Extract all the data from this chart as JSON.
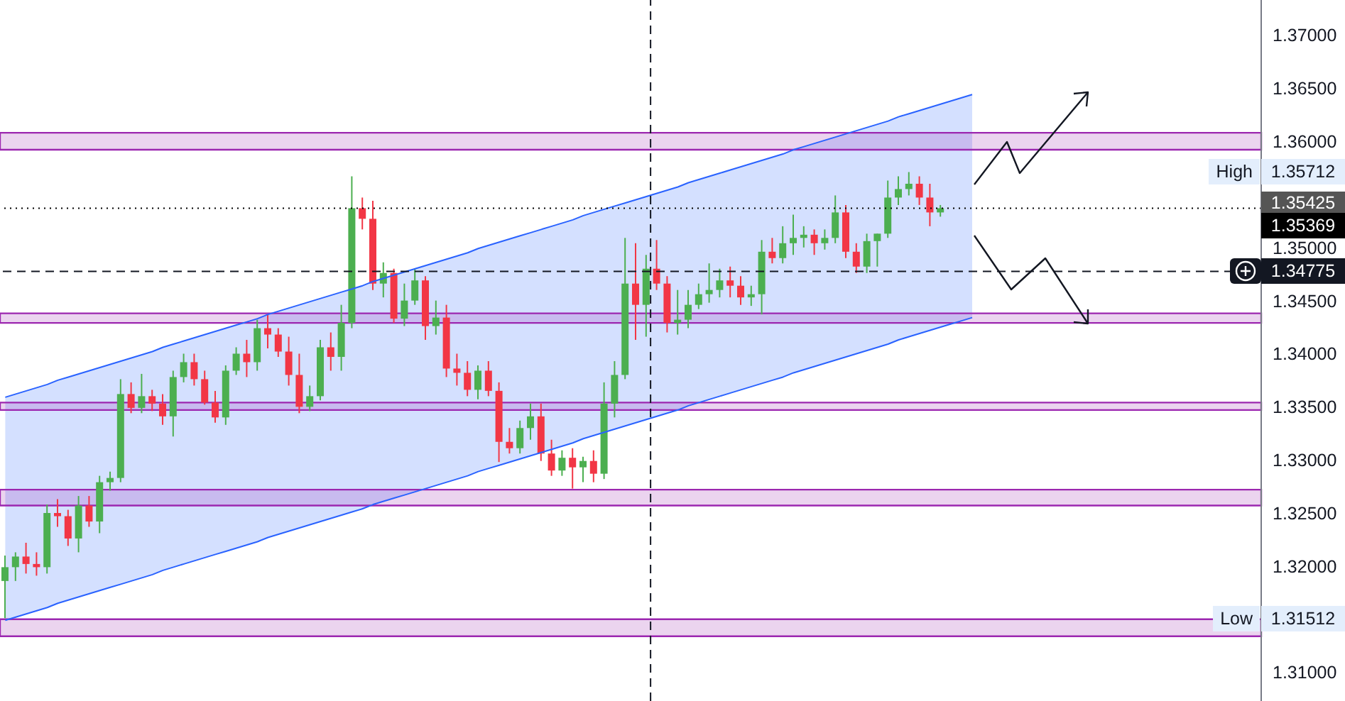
{
  "chart_data": {
    "type": "candlestick",
    "categories": [
      null,
      null,
      null,
      null,
      null,
      null,
      null,
      null,
      null,
      null,
      null,
      null,
      null,
      null,
      null,
      null,
      null,
      null,
      null,
      null,
      null,
      null,
      null,
      null,
      null,
      null,
      null,
      null,
      null,
      null,
      null,
      null,
      null,
      null,
      null,
      null,
      null,
      null,
      null,
      null,
      null,
      null,
      null,
      null,
      null,
      null,
      null,
      null,
      null,
      null,
      null,
      null,
      null,
      null,
      null,
      null,
      null,
      null,
      null,
      null,
      null,
      null,
      null,
      null,
      null,
      null,
      null,
      null,
      null,
      null,
      null,
      null,
      null,
      null,
      null,
      null,
      null,
      null,
      null,
      null,
      null,
      null,
      null,
      null,
      null,
      null,
      null,
      null,
      null,
      null,
      null,
      null,
      null,
      null,
      null,
      null,
      null,
      null,
      null,
      null,
      null,
      null,
      null,
      null,
      null,
      null,
      null,
      null,
      null,
      null,
      null,
      null,
      null,
      null,
      null,
      null,
      null,
      null,
      null,
      null
    ],
    "ohlc": [
      [
        1.3186,
        1.321,
        1.3151,
        1.3199
      ],
      [
        1.3199,
        1.3213,
        1.3186,
        1.3209
      ],
      [
        1.3209,
        1.3222,
        1.3193,
        1.3202
      ],
      [
        1.3202,
        1.3213,
        1.3191,
        1.3199
      ],
      [
        1.3199,
        1.3258,
        1.3193,
        1.325
      ],
      [
        1.325,
        1.3263,
        1.3237,
        1.3247
      ],
      [
        1.3247,
        1.3253,
        1.3219,
        1.3226
      ],
      [
        1.3226,
        1.3266,
        1.3213,
        1.3257
      ],
      [
        1.3257,
        1.3266,
        1.3237,
        1.3242
      ],
      [
        1.3242,
        1.3285,
        1.3231,
        1.3279
      ],
      [
        1.3279,
        1.3289,
        1.3271,
        1.3283
      ],
      [
        1.3283,
        1.3376,
        1.3279,
        1.3362
      ],
      [
        1.3362,
        1.3373,
        1.3344,
        1.3349
      ],
      [
        1.3349,
        1.3381,
        1.3344,
        1.336
      ],
      [
        1.336,
        1.3366,
        1.3346,
        1.3353
      ],
      [
        1.3353,
        1.3362,
        1.3333,
        1.3341
      ],
      [
        1.3341,
        1.3384,
        1.3322,
        1.3378
      ],
      [
        1.3378,
        1.34,
        1.3373,
        1.3392
      ],
      [
        1.3392,
        1.34,
        1.337,
        1.3376
      ],
      [
        1.3376,
        1.3384,
        1.3352,
        1.3354
      ],
      [
        1.3354,
        1.3365,
        1.3335,
        1.334
      ],
      [
        1.334,
        1.3389,
        1.3333,
        1.3384
      ],
      [
        1.3384,
        1.3406,
        1.338,
        1.34
      ],
      [
        1.34,
        1.3413,
        1.3378,
        1.3392
      ],
      [
        1.3392,
        1.3432,
        1.3384,
        1.3424
      ],
      [
        1.3424,
        1.3437,
        1.3405,
        1.3418
      ],
      [
        1.3418,
        1.3424,
        1.3397,
        1.3402
      ],
      [
        1.3402,
        1.3416,
        1.337,
        1.338
      ],
      [
        1.338,
        1.34,
        1.3344,
        1.335
      ],
      [
        1.335,
        1.337,
        1.3346,
        1.336
      ],
      [
        1.336,
        1.3413,
        1.3356,
        1.3406
      ],
      [
        1.3406,
        1.342,
        1.3384,
        1.3397
      ],
      [
        1.3397,
        1.3446,
        1.3384,
        1.3429
      ],
      [
        1.3429,
        1.3567,
        1.3424,
        1.3537
      ],
      [
        1.3537,
        1.3547,
        1.3517,
        1.3527
      ],
      [
        1.3527,
        1.3544,
        1.346,
        1.3466
      ],
      [
        1.3466,
        1.3486,
        1.3453,
        1.3476
      ],
      [
        1.3476,
        1.348,
        1.3429,
        1.3433
      ],
      [
        1.3433,
        1.3466,
        1.3426,
        1.345
      ],
      [
        1.345,
        1.348,
        1.3446,
        1.3469
      ],
      [
        1.3469,
        1.3473,
        1.3413,
        1.3426
      ],
      [
        1.3426,
        1.345,
        1.3418,
        1.3434
      ],
      [
        1.3434,
        1.3446,
        1.3378,
        1.3386
      ],
      [
        1.3386,
        1.34,
        1.337,
        1.3382
      ],
      [
        1.3382,
        1.3393,
        1.336,
        1.3366
      ],
      [
        1.3366,
        1.3389,
        1.3357,
        1.3384
      ],
      [
        1.3384,
        1.3393,
        1.336,
        1.3365
      ],
      [
        1.3365,
        1.3373,
        1.3298,
        1.3317
      ],
      [
        1.3317,
        1.333,
        1.3306,
        1.3311
      ],
      [
        1.3311,
        1.3337,
        1.3306,
        1.333
      ],
      [
        1.333,
        1.3353,
        1.3319,
        1.3341
      ],
      [
        1.3341,
        1.3353,
        1.3299,
        1.3306
      ],
      [
        1.3306,
        1.3319,
        1.3285,
        1.329
      ],
      [
        1.329,
        1.3309,
        1.3285,
        1.3302
      ],
      [
        1.3302,
        1.3311,
        1.3273,
        1.3293
      ],
      [
        1.3293,
        1.3303,
        1.3279,
        1.3299
      ],
      [
        1.3299,
        1.3309,
        1.3279,
        1.3287
      ],
      [
        1.3287,
        1.3373,
        1.3282,
        1.3353
      ],
      [
        1.3353,
        1.3393,
        1.334,
        1.338
      ],
      [
        1.338,
        1.3509,
        1.3376,
        1.3466
      ],
      [
        1.3466,
        1.3504,
        1.3413,
        1.3446
      ],
      [
        1.3446,
        1.3493,
        1.3416,
        1.348
      ],
      [
        1.348,
        1.3507,
        1.346,
        1.3466
      ],
      [
        1.3466,
        1.3473,
        1.342,
        1.3429
      ],
      [
        1.3429,
        1.346,
        1.3418,
        1.3432
      ],
      [
        1.3432,
        1.346,
        1.3424,
        1.3446
      ],
      [
        1.3446,
        1.3466,
        1.3442,
        1.3456
      ],
      [
        1.3456,
        1.3485,
        1.3448,
        1.346
      ],
      [
        1.346,
        1.348,
        1.3453,
        1.3469
      ],
      [
        1.3469,
        1.3482,
        1.3453,
        1.3464
      ],
      [
        1.3464,
        1.3473,
        1.3446,
        1.3453
      ],
      [
        1.3453,
        1.3464,
        1.3445,
        1.3456
      ],
      [
        1.3456,
        1.3507,
        1.3437,
        1.3496
      ],
      [
        1.3496,
        1.3509,
        1.3485,
        1.349
      ],
      [
        1.349,
        1.352,
        1.3485,
        1.3504
      ],
      [
        1.3504,
        1.3531,
        1.3493,
        1.3509
      ],
      [
        1.3509,
        1.352,
        1.35,
        1.3512
      ],
      [
        1.3512,
        1.3517,
        1.3493,
        1.3504
      ],
      [
        1.3504,
        1.3517,
        1.3498,
        1.3509
      ],
      [
        1.3509,
        1.3549,
        1.3504,
        1.3533
      ],
      [
        1.3533,
        1.354,
        1.349,
        1.3496
      ],
      [
        1.3496,
        1.3504,
        1.3476,
        1.3482
      ],
      [
        1.3482,
        1.3513,
        1.3476,
        1.3506
      ],
      [
        1.3506,
        1.3513,
        1.3482,
        1.3513
      ],
      [
        1.3513,
        1.3563,
        1.3509,
        1.3547
      ],
      [
        1.3547,
        1.3567,
        1.354,
        1.3555
      ],
      [
        1.3555,
        1.3571,
        1.3549,
        1.356
      ],
      [
        1.356,
        1.3567,
        1.354,
        1.3547
      ],
      [
        1.3547,
        1.356,
        1.352,
        1.3533
      ],
      [
        1.3533,
        1.354,
        1.3529,
        1.3537
      ],
      null,
      null,
      null,
      null,
      null,
      null,
      null,
      null,
      null,
      null,
      null,
      null,
      null,
      null,
      null,
      null,
      null,
      null,
      null,
      null,
      null,
      null,
      null,
      null,
      null,
      null,
      null,
      null,
      null,
      null
    ],
    "colors": [
      "#4caf50",
      "#4caf50",
      "#f23645",
      "#f23645",
      "#4caf50",
      "#f23645",
      "#f23645",
      "#4caf50",
      "#f23645",
      "#4caf50",
      "#4caf50",
      "#4caf50",
      "#f23645",
      "#4caf50",
      "#f23645",
      "#f23645",
      "#4caf50",
      "#4caf50",
      "#f23645",
      "#f23645",
      "#f23645",
      "#4caf50",
      "#4caf50",
      "#f23645",
      "#4caf50",
      "#f23645",
      "#f23645",
      "#f23645",
      "#f23645",
      "#4caf50",
      "#4caf50",
      "#f23645",
      "#4caf50",
      "#4caf50",
      "#f23645",
      "#f23645",
      "#4caf50",
      "#f23645",
      "#4caf50",
      "#4caf50",
      "#f23645",
      "#4caf50",
      "#f23645",
      "#f23645",
      "#f23645",
      "#4caf50",
      "#f23645",
      "#f23645",
      "#f23645",
      "#4caf50",
      "#4caf50",
      "#f23645",
      "#f23645",
      "#4caf50",
      "#f23645",
      "#4caf50",
      "#f23645",
      "#4caf50",
      "#4caf50",
      "#4caf50",
      "#f23645",
      "#4caf50",
      "#f23645",
      "#f23645",
      "#4caf50",
      "#4caf50",
      "#4caf50",
      "#4caf50",
      "#4caf50",
      "#f23645",
      "#f23645",
      "#4caf50",
      "#4caf50",
      "#f23645",
      "#4caf50",
      "#4caf50",
      "#4caf50",
      "#f23645",
      "#4caf50",
      "#4caf50",
      "#f23645",
      "#f23645",
      "#4caf50",
      "#4caf50",
      "#4caf50",
      "#4caf50",
      "#4caf50",
      "#f23645",
      "#f23645",
      "#4caf50",
      null,
      null,
      null,
      null,
      null,
      null,
      null,
      null,
      null,
      null,
      null,
      null,
      null,
      null,
      null,
      null,
      null,
      null,
      null,
      null,
      null,
      null,
      null,
      null,
      null,
      null,
      null,
      null,
      null,
      null
    ],
    "series": [
      {
        "type": "line",
        "color": "#2962ff",
        "values": [
          1.3149,
          1.3152,
          1.3155,
          1.3158,
          1.3161,
          1.3165,
          1.3168,
          1.3171,
          1.3174,
          1.3177,
          1.318,
          1.3183,
          1.3186,
          1.3189,
          1.3192,
          1.3196,
          1.3199,
          1.3202,
          1.3205,
          1.3208,
          1.3211,
          1.3214,
          1.3217,
          1.322,
          1.3223,
          1.3227,
          1.323,
          1.3233,
          1.3236,
          1.3239,
          1.3242,
          1.3245,
          1.3248,
          1.3251,
          1.3254,
          1.3258,
          1.3261,
          1.3264,
          1.3267,
          1.327,
          1.3273,
          1.3276,
          1.3279,
          1.3282,
          1.3285,
          1.3289,
          1.3292,
          1.3295,
          1.3298,
          1.3301,
          1.3304,
          1.3307,
          1.331,
          1.3313,
          1.3316,
          1.332,
          1.3323,
          1.3326,
          1.3329,
          1.3332,
          1.3335,
          1.3338,
          1.3341,
          1.3344,
          1.3347,
          1.3351,
          1.3354,
          1.3357,
          1.336,
          1.3363,
          1.3366,
          1.3369,
          1.3372,
          1.3375,
          1.3378,
          1.3382,
          1.3385,
          1.3388,
          1.3391,
          1.3394,
          1.3397,
          1.34,
          1.3403,
          1.3406,
          1.3409,
          1.3413,
          1.3416,
          1.3419,
          1.3422,
          1.3425,
          1.3428,
          1.3431,
          1.3434,
          null,
          null,
          null,
          null,
          null,
          null,
          null,
          null,
          null,
          null,
          null,
          null,
          null,
          null,
          null,
          null,
          null,
          null,
          null,
          null,
          null,
          null,
          null,
          null,
          null,
          null,
          null
        ]
      },
      {
        "type": "line",
        "color": "#2962ff",
        "values": [
          1.3359,
          1.3362,
          1.3365,
          1.3368,
          1.3371,
          1.3375,
          1.3378,
          1.3381,
          1.3384,
          1.3387,
          1.339,
          1.3393,
          1.3396,
          1.3399,
          1.3402,
          1.3406,
          1.3409,
          1.3412,
          1.3415,
          1.3418,
          1.3421,
          1.3424,
          1.3427,
          1.343,
          1.3433,
          1.3437,
          1.344,
          1.3443,
          1.3446,
          1.3449,
          1.3452,
          1.3455,
          1.3458,
          1.3461,
          1.3464,
          1.3468,
          1.3471,
          1.3474,
          1.3477,
          1.348,
          1.3483,
          1.3486,
          1.3489,
          1.3492,
          1.3495,
          1.3499,
          1.3502,
          1.3505,
          1.3508,
          1.3511,
          1.3514,
          1.3517,
          1.352,
          1.3523,
          1.3526,
          1.353,
          1.3533,
          1.3536,
          1.3539,
          1.3542,
          1.3545,
          1.3548,
          1.3551,
          1.3554,
          1.3557,
          1.3561,
          1.3564,
          1.3567,
          1.357,
          1.3573,
          1.3576,
          1.3579,
          1.3582,
          1.3585,
          1.3588,
          1.3592,
          1.3595,
          1.3598,
          1.3601,
          1.3604,
          1.3607,
          1.361,
          1.3613,
          1.3616,
          1.3619,
          1.3623,
          1.3626,
          1.3629,
          1.3632,
          1.3635,
          1.3638,
          1.3641,
          1.3644,
          null,
          null,
          null,
          null,
          null,
          null,
          null,
          null,
          null,
          null,
          null,
          null,
          null,
          null,
          null,
          null,
          null,
          null,
          null,
          null,
          null,
          null,
          null,
          null,
          null,
          null,
          null
        ]
      }
    ],
    "ylim": [
      1.3073,
      1.3733
    ],
    "yticks": [
      {
        "value": 1.31,
        "label": "1.31000"
      },
      {
        "value": 1.32,
        "label": "1.32000"
      },
      {
        "value": 1.325,
        "label": "1.32500"
      },
      {
        "value": 1.33,
        "label": "1.33000"
      },
      {
        "value": 1.335,
        "label": "1.33500"
      },
      {
        "value": 1.34,
        "label": "1.34000"
      },
      {
        "value": 1.345,
        "label": "1.34500"
      },
      {
        "value": 1.35,
        "label": "1.35000"
      },
      {
        "value": 1.36,
        "label": "1.36000"
      },
      {
        "value": 1.365,
        "label": "1.36500"
      },
      {
        "value": 1.37,
        "label": "1.37000"
      }
    ],
    "tick_labels": "y",
    "bands": [
      {
        "axis": "y",
        "from": 1.3592,
        "to": 1.3608,
        "color": "#9c27b0"
      },
      {
        "axis": "y",
        "from": 1.3429,
        "to": 1.3438,
        "color": "#9c27b0"
      },
      {
        "axis": "y",
        "from": 1.3347,
        "to": 1.3354,
        "color": "#9c27b0"
      },
      {
        "axis": "y",
        "from": 1.3257,
        "to": 1.3272,
        "color": "#9c27b0"
      },
      {
        "axis": "y",
        "from": 1.3134,
        "to": 1.315,
        "color": "#9c27b0"
      }
    ],
    "ref_lines": [
      {
        "axis": "y",
        "value": 1.35369,
        "label": "1.35369",
        "line_style": "dotted",
        "color": "#000000"
      },
      {
        "axis": "y",
        "value": 1.34775,
        "label": "1.34775",
        "line_style": "dashed",
        "color": "#131722"
      }
    ],
    "annotations": [
      "High",
      "1.35712",
      "1.35425",
      "Low",
      "1.31512"
    ]
  }
}
